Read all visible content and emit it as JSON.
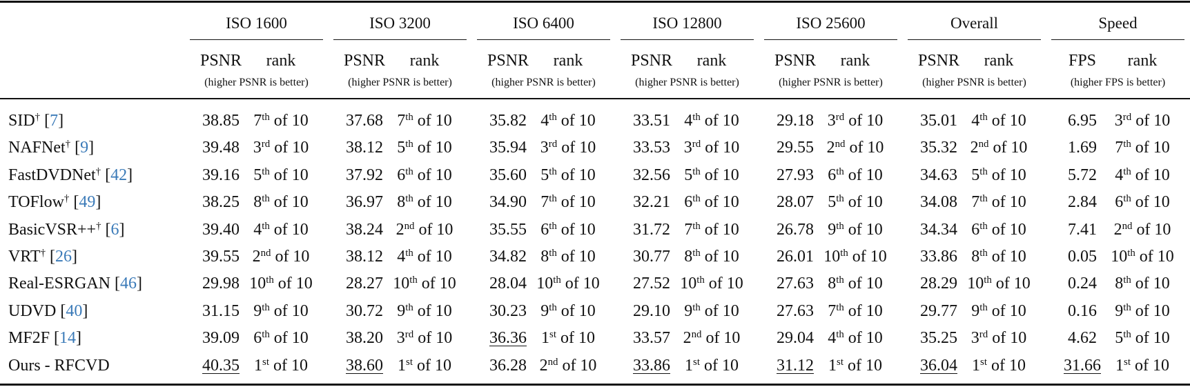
{
  "table": {
    "groups": [
      {
        "name": "ISO 1600",
        "metric": "PSNR",
        "rank": "rank",
        "note": "(higher PSNR is better)"
      },
      {
        "name": "ISO 3200",
        "metric": "PSNR",
        "rank": "rank",
        "note": "(higher PSNR is better)"
      },
      {
        "name": "ISO 6400",
        "metric": "PSNR",
        "rank": "rank",
        "note": "(higher PSNR is better)"
      },
      {
        "name": "ISO 12800",
        "metric": "PSNR",
        "rank": "rank",
        "note": "(higher PSNR is better)"
      },
      {
        "name": "ISO 25600",
        "metric": "PSNR",
        "rank": "rank",
        "note": "(higher PSNR is better)"
      },
      {
        "name": "Overall",
        "metric": "PSNR",
        "rank": "rank",
        "note": "(higher PSNR is better)"
      },
      {
        "name": "Speed",
        "metric": "FPS",
        "rank": "rank",
        "note": "(higher FPS is better)"
      }
    ],
    "rows": [
      {
        "method": "SID",
        "dagger": "†",
        "cite": [
          "[",
          "7",
          "]"
        ],
        "cells": [
          {
            "v": "38.85",
            "r": [
              "7",
              "th",
              "of 10"
            ]
          },
          {
            "v": "37.68",
            "r": [
              "7",
              "th",
              "of 10"
            ]
          },
          {
            "v": "35.82",
            "r": [
              "4",
              "th",
              "of 10"
            ]
          },
          {
            "v": "33.51",
            "r": [
              "4",
              "th",
              "of 10"
            ]
          },
          {
            "v": "29.18",
            "r": [
              "3",
              "rd",
              "of 10"
            ]
          },
          {
            "v": "35.01",
            "r": [
              "4",
              "th",
              "of 10"
            ]
          },
          {
            "v": "6.95",
            "r": [
              "3",
              "rd",
              "of 10"
            ]
          }
        ]
      },
      {
        "method": "NAFNet",
        "dagger": "†",
        "cite": [
          "[",
          "9",
          "]"
        ],
        "cells": [
          {
            "v": "39.48",
            "r": [
              "3",
              "rd",
              "of 10"
            ]
          },
          {
            "v": "38.12",
            "r": [
              "5",
              "th",
              "of 10"
            ]
          },
          {
            "v": "35.94",
            "r": [
              "3",
              "rd",
              "of 10"
            ]
          },
          {
            "v": "33.53",
            "r": [
              "3",
              "rd",
              "of 10"
            ]
          },
          {
            "v": "29.55",
            "r": [
              "2",
              "nd",
              "of 10"
            ]
          },
          {
            "v": "35.32",
            "r": [
              "2",
              "nd",
              "of 10"
            ]
          },
          {
            "v": "1.69",
            "r": [
              "7",
              "th",
              "of 10"
            ]
          }
        ]
      },
      {
        "method": "FastDVDNet",
        "dagger": "†",
        "cite": [
          "[",
          "42",
          "]"
        ],
        "cells": [
          {
            "v": "39.16",
            "r": [
              "5",
              "th",
              "of 10"
            ]
          },
          {
            "v": "37.92",
            "r": [
              "6",
              "th",
              "of 10"
            ]
          },
          {
            "v": "35.60",
            "r": [
              "5",
              "th",
              "of 10"
            ]
          },
          {
            "v": "32.56",
            "r": [
              "5",
              "th",
              "of 10"
            ]
          },
          {
            "v": "27.93",
            "r": [
              "6",
              "th",
              "of 10"
            ]
          },
          {
            "v": "34.63",
            "r": [
              "5",
              "th",
              "of 10"
            ]
          },
          {
            "v": "5.72",
            "r": [
              "4",
              "th",
              "of 10"
            ]
          }
        ]
      },
      {
        "method": "TOFlow",
        "dagger": "†",
        "cite": [
          "[",
          "49",
          "]"
        ],
        "cells": [
          {
            "v": "38.25",
            "r": [
              "8",
              "th",
              "of 10"
            ]
          },
          {
            "v": "36.97",
            "r": [
              "8",
              "th",
              "of 10"
            ]
          },
          {
            "v": "34.90",
            "r": [
              "7",
              "th",
              "of 10"
            ]
          },
          {
            "v": "32.21",
            "r": [
              "6",
              "th",
              "of 10"
            ]
          },
          {
            "v": "28.07",
            "r": [
              "5",
              "th",
              "of 10"
            ]
          },
          {
            "v": "34.08",
            "r": [
              "7",
              "th",
              "of 10"
            ]
          },
          {
            "v": "2.84",
            "r": [
              "6",
              "th",
              "of 10"
            ]
          }
        ]
      },
      {
        "method": "BasicVSR++",
        "dagger": "†",
        "cite": [
          "[",
          "6",
          "]"
        ],
        "cells": [
          {
            "v": "39.40",
            "r": [
              "4",
              "th",
              "of 10"
            ]
          },
          {
            "v": "38.24",
            "r": [
              "2",
              "nd",
              "of 10"
            ]
          },
          {
            "v": "35.55",
            "r": [
              "6",
              "th",
              "of 10"
            ]
          },
          {
            "v": "31.72",
            "r": [
              "7",
              "th",
              "of 10"
            ]
          },
          {
            "v": "26.78",
            "r": [
              "9",
              "th",
              "of 10"
            ]
          },
          {
            "v": "34.34",
            "r": [
              "6",
              "th",
              "of 10"
            ]
          },
          {
            "v": "7.41",
            "r": [
              "2",
              "nd",
              "of 10"
            ]
          }
        ]
      },
      {
        "method": "VRT",
        "dagger": "†",
        "cite": [
          "[",
          "26",
          "]"
        ],
        "cells": [
          {
            "v": "39.55",
            "r": [
              "2",
              "nd",
              "of 10"
            ]
          },
          {
            "v": "38.12",
            "r": [
              "4",
              "th",
              "of 10"
            ]
          },
          {
            "v": "34.82",
            "r": [
              "8",
              "th",
              "of 10"
            ]
          },
          {
            "v": "30.77",
            "r": [
              "8",
              "th",
              "of 10"
            ]
          },
          {
            "v": "26.01",
            "r": [
              "10",
              "th",
              "of 10"
            ]
          },
          {
            "v": "33.86",
            "r": [
              "8",
              "th",
              "of 10"
            ]
          },
          {
            "v": "0.05",
            "r": [
              "10",
              "th",
              "of 10"
            ]
          }
        ]
      },
      {
        "method": "Real-ESRGAN",
        "cite": [
          "[",
          "46",
          "]"
        ],
        "cells": [
          {
            "v": "29.98",
            "r": [
              "10",
              "th",
              "of 10"
            ]
          },
          {
            "v": "28.27",
            "r": [
              "10",
              "th",
              "of 10"
            ]
          },
          {
            "v": "28.04",
            "r": [
              "10",
              "th",
              "of 10"
            ]
          },
          {
            "v": "27.52",
            "r": [
              "10",
              "th",
              "of 10"
            ]
          },
          {
            "v": "27.63",
            "r": [
              "8",
              "th",
              "of 10"
            ]
          },
          {
            "v": "28.29",
            "r": [
              "10",
              "th",
              "of 10"
            ]
          },
          {
            "v": "0.24",
            "r": [
              "8",
              "th",
              "of 10"
            ]
          }
        ]
      },
      {
        "method": "UDVD",
        "cite": [
          "[",
          "40",
          "]"
        ],
        "cells": [
          {
            "v": "31.15",
            "r": [
              "9",
              "th",
              "of 10"
            ]
          },
          {
            "v": "30.72",
            "r": [
              "9",
              "th",
              "of 10"
            ]
          },
          {
            "v": "30.23",
            "r": [
              "9",
              "th",
              "of 10"
            ]
          },
          {
            "v": "29.10",
            "r": [
              "9",
              "th",
              "of 10"
            ]
          },
          {
            "v": "27.63",
            "r": [
              "7",
              "th",
              "of 10"
            ]
          },
          {
            "v": "29.77",
            "r": [
              "9",
              "th",
              "of 10"
            ]
          },
          {
            "v": "0.16",
            "r": [
              "9",
              "th",
              "of 10"
            ]
          }
        ]
      },
      {
        "method": "MF2F",
        "cite": [
          "[",
          "14",
          "]"
        ],
        "cells": [
          {
            "v": "39.09",
            "r": [
              "6",
              "th",
              "of 10"
            ]
          },
          {
            "v": "38.20",
            "r": [
              "3",
              "rd",
              "of 10"
            ]
          },
          {
            "v": "36.36",
            "u": true,
            "r": [
              "1",
              "st",
              "of 10"
            ]
          },
          {
            "v": "33.57",
            "r": [
              "2",
              "nd",
              "of 10"
            ]
          },
          {
            "v": "29.04",
            "r": [
              "4",
              "th",
              "of 10"
            ]
          },
          {
            "v": "35.25",
            "r": [
              "3",
              "rd",
              "of 10"
            ]
          },
          {
            "v": "4.62",
            "r": [
              "5",
              "th",
              "of 10"
            ]
          }
        ]
      },
      {
        "method": "Ours - RFCVD",
        "cells": [
          {
            "v": "40.35",
            "u": true,
            "r": [
              "1",
              "st",
              "of 10"
            ]
          },
          {
            "v": "38.60",
            "u": true,
            "r": [
              "1",
              "st",
              "of 10"
            ]
          },
          {
            "v": "36.28",
            "r": [
              "2",
              "nd",
              "of 10"
            ]
          },
          {
            "v": "33.86",
            "u": true,
            "r": [
              "1",
              "st",
              "of 10"
            ]
          },
          {
            "v": "31.12",
            "u": true,
            "r": [
              "1",
              "st",
              "of 10"
            ]
          },
          {
            "v": "36.04",
            "u": true,
            "r": [
              "1",
              "st",
              "of 10"
            ]
          },
          {
            "v": "31.66",
            "u": true,
            "r": [
              "1",
              "st",
              "of 10"
            ]
          }
        ]
      }
    ]
  }
}
